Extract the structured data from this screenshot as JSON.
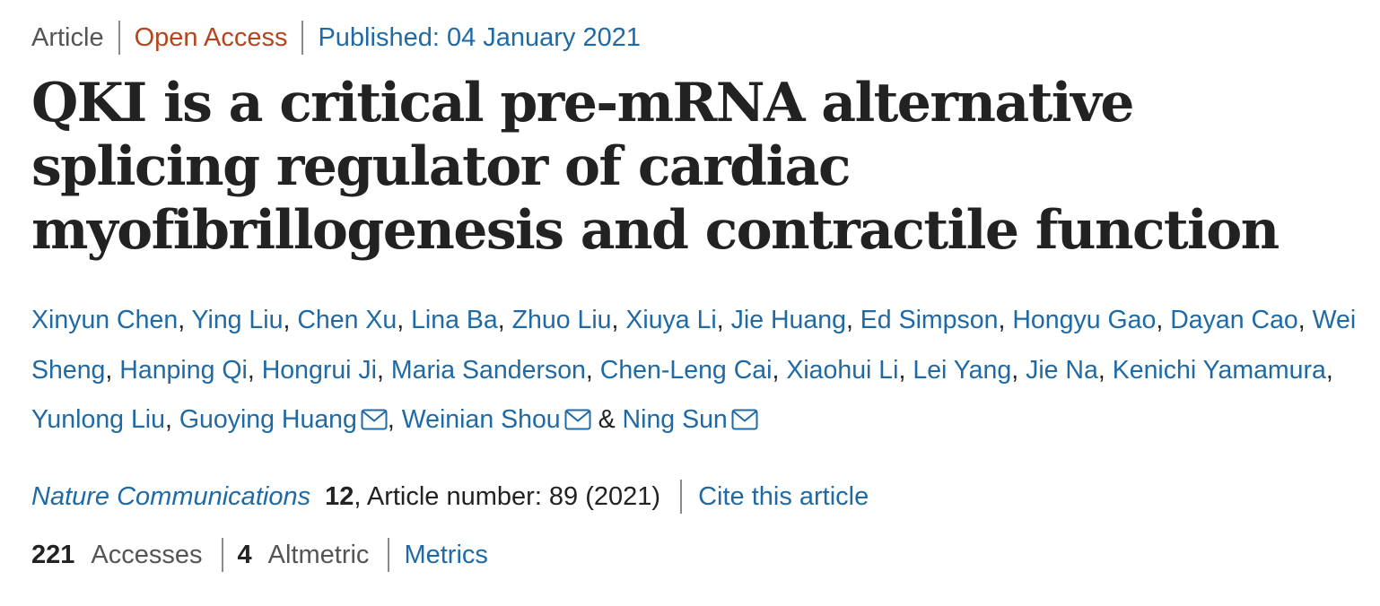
{
  "article": {
    "type": "Article",
    "access": "Open Access",
    "published": "Published: 04 January 2021",
    "title": "QKI is a critical pre-mRNA alternative splicing regulator of cardiac myofibrillogenesis and contractile function"
  },
  "authors": {
    "list": [
      "Xinyun Chen",
      "Ying Liu",
      "Chen Xu",
      "Lina Ba",
      "Zhuo Liu",
      "Xiuya Li",
      "Jie Huang",
      "Ed Simpson",
      "Hongyu Gao",
      "Dayan Cao",
      "Wei Sheng",
      "Hanping Qi",
      "Hongrui Ji",
      "Maria Sanderson",
      "Chen-Leng Cai",
      "Xiaohui Li",
      "Lei Yang",
      "Jie Na",
      "Kenichi Yamamura",
      "Yunlong Liu",
      "Guoying Huang",
      "Weinian Shou",
      "Ning Sun"
    ],
    "corresponding": [
      "Guoying Huang",
      "Weinian Shou",
      "Ning Sun"
    ],
    "separator": ", ",
    "last_separator": " & ",
    "mail_icon": "mail-icon"
  },
  "citation": {
    "journal": "Nature Communications",
    "volume": "12",
    "article_number": ", Article number: 89 (2021)",
    "cite_link": "Cite this article"
  },
  "metrics": {
    "accesses_count": "221",
    "accesses_label": "Accesses",
    "altmetric_count": "4",
    "altmetric_label": "Altmetric",
    "metrics_link": "Metrics"
  },
  "colors": {
    "link": "#1f6aa5",
    "open_access": "#b4451f",
    "muted": "#555555",
    "text": "#222222"
  }
}
